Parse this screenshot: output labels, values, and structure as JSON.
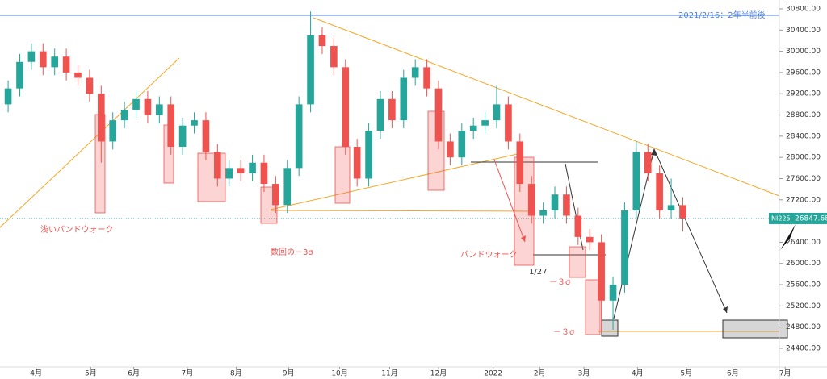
{
  "chart_data": {
    "type": "candlestick",
    "symbol": "NI225",
    "last_price": 26847.68,
    "up_color": "#26a69a",
    "down_color": "#ef5350",
    "open": [
      29000,
      29300,
      29800,
      30000,
      29700,
      29900,
      29600,
      29500,
      29200,
      28300,
      28700,
      28900,
      29100,
      28800,
      29000,
      28200,
      28600,
      28700,
      28100,
      27600,
      27800,
      27700,
      27900,
      27500,
      27100,
      27800,
      29000,
      30300,
      30100,
      29700,
      28200,
      27600,
      28500,
      29100,
      28700,
      29500,
      29700,
      29300,
      28300,
      28000,
      28500,
      28600,
      28700,
      29000,
      28300,
      27500,
      26900,
      27000,
      27300,
      26900,
      26500,
      26400,
      25300,
      25600,
      27000,
      28100,
      27700,
      27000,
      27100
    ],
    "high": [
      29450,
      29950,
      30150,
      30150,
      30050,
      30050,
      29750,
      29650,
      29350,
      28850,
      29050,
      29250,
      29250,
      29150,
      29150,
      28750,
      28850,
      28850,
      28250,
      27950,
      27950,
      28050,
      28050,
      27650,
      27950,
      29150,
      30750,
      30450,
      30250,
      29850,
      28350,
      28650,
      29250,
      29250,
      29650,
      29850,
      29850,
      29450,
      28450,
      28650,
      28750,
      28850,
      29350,
      29150,
      28450,
      27650,
      27150,
      27450,
      27450,
      27050,
      26650,
      26550,
      25750,
      27150,
      28300,
      28250,
      27850,
      27600,
      27250
    ],
    "low": [
      28850,
      29150,
      29650,
      29550,
      29550,
      29450,
      29350,
      29050,
      27900,
      28150,
      28550,
      28750,
      28650,
      28650,
      28050,
      28050,
      28450,
      27950,
      27450,
      27450,
      27550,
      27550,
      27350,
      26950,
      26950,
      27650,
      28850,
      29950,
      29550,
      28050,
      27450,
      27450,
      28350,
      28550,
      28550,
      29350,
      29150,
      28150,
      27850,
      27850,
      28350,
      28450,
      28550,
      28150,
      27350,
      26750,
      26750,
      26850,
      26750,
      26350,
      26250,
      24700,
      24750,
      25450,
      26850,
      27550,
      26850,
      26850,
      26600
    ],
    "close": [
      29300,
      29800,
      30000,
      29700,
      29900,
      29600,
      29500,
      29200,
      28300,
      28700,
      28900,
      29100,
      28800,
      29000,
      28200,
      28600,
      28700,
      28100,
      27600,
      27800,
      27700,
      27900,
      27500,
      27100,
      27800,
      29000,
      30300,
      30100,
      29700,
      28200,
      27600,
      28500,
      29100,
      28700,
      29500,
      29700,
      29300,
      28300,
      28000,
      28500,
      28600,
      28700,
      29000,
      28300,
      27500,
      26900,
      27000,
      27300,
      26900,
      26500,
      26400,
      25300,
      25600,
      27000,
      28100,
      27700,
      27000,
      27100,
      26850
    ],
    "ylim": [
      24050,
      30967
    ],
    "yticks": [
      {
        "value": 24400,
        "label": "24400.00"
      },
      {
        "value": 24800,
        "label": "24800.00"
      },
      {
        "value": 25200,
        "label": "25200.00"
      },
      {
        "value": 25600,
        "label": "25600.00"
      },
      {
        "value": 26000,
        "label": "26000.00"
      },
      {
        "value": 26400,
        "label": "26400.00"
      },
      {
        "value": 26800,
        "label": "26800.00"
      },
      {
        "value": 27200,
        "label": "27200.00"
      },
      {
        "value": 27600,
        "label": "27600.00"
      },
      {
        "value": 28000,
        "label": "28000.00"
      },
      {
        "value": 28400,
        "label": "28400.00"
      },
      {
        "value": 28800,
        "label": "28800.00"
      },
      {
        "value": 29200,
        "label": "29200.00"
      },
      {
        "value": 29600,
        "label": "29600.00"
      },
      {
        "value": 30000,
        "label": "30000.00"
      },
      {
        "value": 30400,
        "label": "30400.00"
      },
      {
        "value": 30800,
        "label": "30800.00"
      }
    ],
    "xlim": [
      -0.7,
      66.3
    ],
    "xticks": [
      {
        "value": 2.4,
        "label": "4月"
      },
      {
        "value": 7.1,
        "label": "5月"
      },
      {
        "value": 10.8,
        "label": "6月"
      },
      {
        "value": 15.4,
        "label": "7月"
      },
      {
        "value": 19.6,
        "label": "8月"
      },
      {
        "value": 24.1,
        "label": "9月"
      },
      {
        "value": 28.5,
        "label": "10月"
      },
      {
        "value": 32.8,
        "label": "11月"
      },
      {
        "value": 37.0,
        "label": "12月"
      },
      {
        "value": 41.7,
        "label": "2022"
      },
      {
        "value": 45.7,
        "label": "2月"
      },
      {
        "value": 49.5,
        "label": "3月"
      },
      {
        "value": 54.1,
        "label": "4月"
      },
      {
        "value": 58.3,
        "label": "5月"
      },
      {
        "value": 62.3,
        "label": "6月"
      },
      {
        "value": 66.8,
        "label": "7月"
      }
    ],
    "annotations": [
      "2021/2/16：2年半前後",
      "浅いバンドウォーク",
      "数回の－3σ",
      "バンドウォーク",
      "1/27",
      "－３σ",
      "－３σ"
    ]
  }
}
